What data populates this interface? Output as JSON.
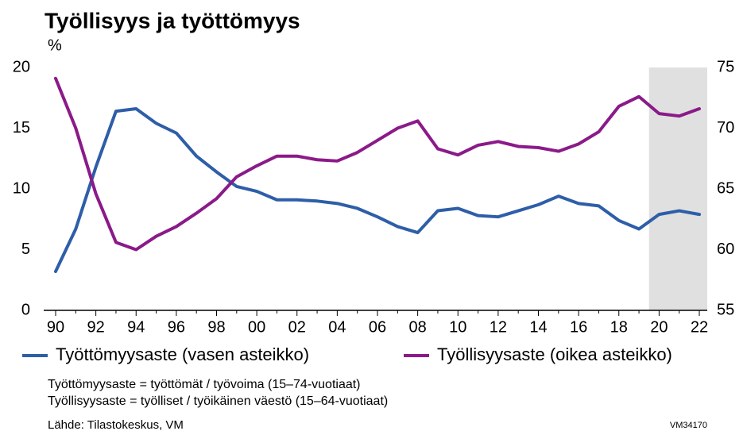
{
  "chart_data": {
    "type": "line",
    "title": "Työllisyys ja työttömyys",
    "y_label": "%",
    "categories": [
      "90",
      null,
      "92",
      null,
      "94",
      null,
      "96",
      null,
      "98",
      null,
      "00",
      null,
      "02",
      null,
      "04",
      null,
      "06",
      null,
      "08",
      null,
      "10",
      null,
      "12",
      null,
      "14",
      null,
      "16",
      null,
      "18",
      null,
      "20",
      null,
      "22"
    ],
    "series": [
      {
        "name": "Työttömyysaste (vasen asteikko)",
        "color": "#2e5ea8",
        "axis": "y",
        "values": [
          3.2,
          6.7,
          11.8,
          16.4,
          16.6,
          15.4,
          14.6,
          12.7,
          11.4,
          10.2,
          9.8,
          9.1,
          9.1,
          9.0,
          8.8,
          8.4,
          7.7,
          6.9,
          6.4,
          8.2,
          8.4,
          7.8,
          7.7,
          8.2,
          8.7,
          9.4,
          8.8,
          8.6,
          7.4,
          6.7,
          7.9,
          8.2,
          7.9
        ]
      },
      {
        "name": "Työllisyysaste (oikea asteikko)",
        "color": "#8b1a89",
        "axis": "y2",
        "values": [
          74.1,
          70.0,
          64.6,
          60.6,
          60.0,
          61.1,
          61.9,
          63.0,
          64.2,
          66.0,
          66.9,
          67.7,
          67.7,
          67.4,
          67.3,
          68.0,
          69.0,
          70.0,
          70.6,
          68.3,
          67.8,
          68.6,
          68.9,
          68.5,
          68.4,
          68.1,
          68.7,
          69.7,
          71.8,
          72.6,
          71.2,
          71.0,
          71.6
        ]
      }
    ],
    "ylim": [
      0,
      20
    ],
    "yticks": [
      0,
      5,
      10,
      15,
      20
    ],
    "y2lim": [
      55,
      75
    ],
    "y2ticks": [
      55,
      60,
      65,
      70,
      75
    ],
    "shaded_from": "20",
    "shade_color": "#e0e0e0",
    "legend": "bottom",
    "notes": [
      "Työttömyysaste = työttömät / työvoima (15–74-vuotiaat)",
      "Työllisyysaste = työlliset / työikäinen väestö (15–64-vuotiaat)"
    ],
    "source": "Lähde: Tilastokeskus, VM",
    "code": "VM34170"
  }
}
